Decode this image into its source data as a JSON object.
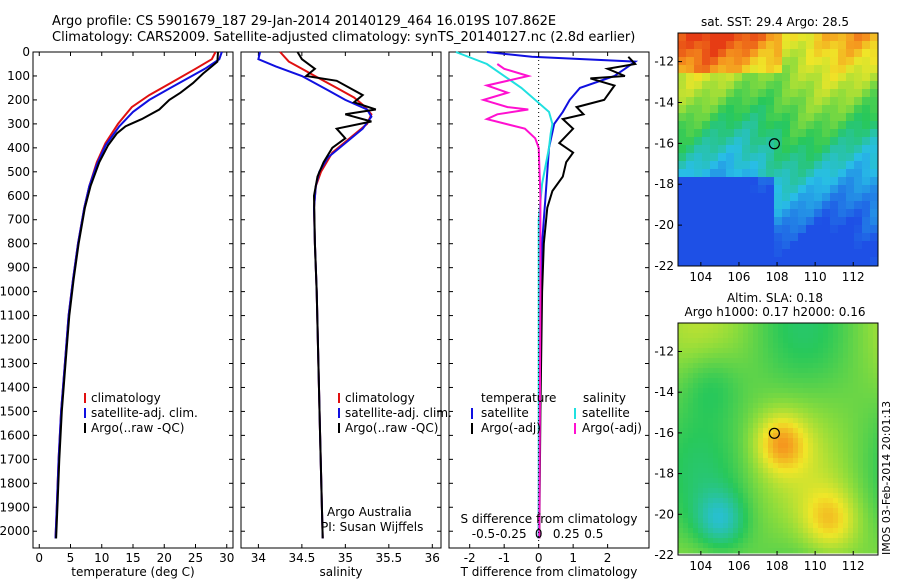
{
  "header": {
    "line1": "Argo profile: CS 5901679_187 29-Jan-2014 20140129_464 16.019S 107.862E",
    "line2": "Climatology: CARS2009. Satellite-adjusted climatology: synTS_20140127.nc (2.8d earlier)"
  },
  "stamp": "IMOS 03-Feb-2014 20:01:13",
  "colors": {
    "climatology": "#e01010",
    "satellite": "#1010e0",
    "argo": "#000000",
    "sal_sat": "#20e0e0",
    "sal_argo": "#ff10d0"
  },
  "chart_data": [
    {
      "type": "line",
      "id": "temperature",
      "xlabel": "temperature (deg C)",
      "ylabel": "",
      "xlim": [
        -1,
        31
      ],
      "ylim": [
        2070,
        0
      ],
      "xticks": [
        0,
        5,
        10,
        15,
        20,
        25,
        30
      ],
      "yticks": [
        0,
        100,
        200,
        300,
        400,
        500,
        600,
        700,
        800,
        900,
        1000,
        1100,
        1200,
        1300,
        1400,
        1500,
        1600,
        1700,
        1800,
        1900,
        2000
      ],
      "legend": [
        "climatology",
        "satellite-adj. clim.",
        "Argo(..raw -QC)"
      ],
      "series": [
        {
          "name": "climatology",
          "color": "#e01010",
          "points": [
            [
              28.2,
              0
            ],
            [
              27.6,
              30
            ],
            [
              25,
              70
            ],
            [
              21,
              130
            ],
            [
              17.6,
              180
            ],
            [
              14.8,
              230
            ],
            [
              12.6,
              300
            ],
            [
              10.6,
              380
            ],
            [
              9.2,
              460
            ],
            [
              8,
              560
            ],
            [
              7.2,
              650
            ],
            [
              6.2,
              800
            ],
            [
              5.4,
              950
            ],
            [
              4.7,
              1100
            ],
            [
              4.1,
              1300
            ],
            [
              3.5,
              1500
            ],
            [
              3.1,
              1700
            ],
            [
              2.8,
              1900
            ],
            [
              2.6,
              2030
            ]
          ]
        },
        {
          "name": "satellite-adj. clim.",
          "color": "#1010e0",
          "points": [
            [
              29.2,
              0
            ],
            [
              28.8,
              30
            ],
            [
              26.5,
              70
            ],
            [
              21,
              150
            ],
            [
              17.6,
              200
            ],
            [
              15,
              250
            ],
            [
              12.8,
              310
            ],
            [
              10.6,
              390
            ],
            [
              9.2,
              470
            ],
            [
              8,
              560
            ],
            [
              7.2,
              650
            ],
            [
              6.2,
              800
            ],
            [
              5.4,
              950
            ],
            [
              4.7,
              1100
            ],
            [
              4.1,
              1300
            ],
            [
              3.5,
              1500
            ],
            [
              3.1,
              1700
            ],
            [
              2.8,
              1900
            ],
            [
              2.6,
              2030
            ]
          ]
        },
        {
          "name": "Argo(..raw -QC)",
          "color": "#000000",
          "points": [
            [
              28.6,
              0
            ],
            [
              28.5,
              40
            ],
            [
              27.6,
              60
            ],
            [
              26.2,
              90
            ],
            [
              24.6,
              130
            ],
            [
              22.6,
              170
            ],
            [
              20.8,
              200
            ],
            [
              19.2,
              240
            ],
            [
              16.4,
              280
            ],
            [
              13.8,
              310
            ],
            [
              12.4,
              340
            ],
            [
              11,
              390
            ],
            [
              9.6,
              460
            ],
            [
              8.2,
              560
            ],
            [
              7.3,
              650
            ],
            [
              6.3,
              800
            ],
            [
              5.5,
              950
            ],
            [
              4.8,
              1100
            ],
            [
              4.2,
              1300
            ],
            [
              3.6,
              1500
            ],
            [
              3.2,
              1700
            ],
            [
              2.9,
              1900
            ],
            [
              2.7,
              2030
            ]
          ]
        }
      ]
    },
    {
      "type": "line",
      "id": "salinity",
      "xlabel": "salinity",
      "xlim": [
        33.8,
        36.1
      ],
      "ylim": [
        2070,
        0
      ],
      "xticks": [
        34,
        34.5,
        35,
        35.5,
        36
      ],
      "legend": [
        "climatology",
        "satellite-adj. clim.",
        "Argo(..raw -QC)"
      ],
      "annotation": [
        "Argo Australia",
        "PI: Susan Wijffels"
      ],
      "series": [
        {
          "name": "climatology",
          "color": "#e01010",
          "points": [
            [
              34.25,
              0
            ],
            [
              34.35,
              40
            ],
            [
              34.5,
              70
            ],
            [
              34.65,
              100
            ],
            [
              34.9,
              150
            ],
            [
              35.1,
              190
            ],
            [
              35.2,
              220
            ],
            [
              35.3,
              260
            ],
            [
              35.25,
              300
            ],
            [
              35.05,
              360
            ],
            [
              34.85,
              420
            ],
            [
              34.72,
              500
            ],
            [
              34.66,
              560
            ],
            [
              34.64,
              650
            ],
            [
              34.65,
              800
            ],
            [
              34.67,
              1000
            ],
            [
              34.69,
              1300
            ],
            [
              34.71,
              1600
            ],
            [
              34.73,
              1900
            ],
            [
              34.74,
              2030
            ]
          ]
        },
        {
          "name": "satellite-adj. clim.",
          "color": "#1010e0",
          "points": [
            [
              34.02,
              0
            ],
            [
              34.0,
              30
            ],
            [
              34.2,
              60
            ],
            [
              34.5,
              100
            ],
            [
              34.8,
              160
            ],
            [
              35.0,
              200
            ],
            [
              35.25,
              240
            ],
            [
              35.3,
              270
            ],
            [
              35.2,
              320
            ],
            [
              35.0,
              380
            ],
            [
              34.8,
              440
            ],
            [
              34.7,
              500
            ],
            [
              34.66,
              560
            ],
            [
              34.64,
              650
            ],
            [
              34.65,
              800
            ],
            [
              34.67,
              1000
            ],
            [
              34.69,
              1300
            ],
            [
              34.71,
              1600
            ],
            [
              34.73,
              1900
            ],
            [
              34.74,
              2030
            ]
          ]
        },
        {
          "name": "Argo(..raw -QC)",
          "color": "#000000",
          "points": [
            [
              34.45,
              0
            ],
            [
              34.5,
              30
            ],
            [
              34.65,
              70
            ],
            [
              34.55,
              100
            ],
            [
              34.9,
              120
            ],
            [
              35.2,
              180
            ],
            [
              35.1,
              210
            ],
            [
              35.35,
              240
            ],
            [
              35.0,
              260
            ],
            [
              35.3,
              290
            ],
            [
              34.9,
              320
            ],
            [
              35.0,
              360
            ],
            [
              34.85,
              400
            ],
            [
              34.75,
              460
            ],
            [
              34.68,
              520
            ],
            [
              34.64,
              600
            ],
            [
              34.65,
              800
            ],
            [
              34.67,
              1000
            ],
            [
              34.69,
              1300
            ],
            [
              34.71,
              1600
            ],
            [
              34.73,
              1900
            ],
            [
              34.74,
              2030
            ]
          ]
        }
      ]
    },
    {
      "type": "line",
      "id": "difference",
      "xlabel": "T difference from climatology",
      "x2label": "S difference from climatology",
      "xlim": [
        -2.6,
        3.2
      ],
      "ylim": [
        2070,
        0
      ],
      "xticks": [
        -2,
        -1,
        0,
        1,
        2
      ],
      "x2ticks": [
        "-0.5",
        "-0.25",
        "0",
        "0.25",
        "0.5"
      ],
      "legend": {
        "temperature_head": "temperature",
        "salinity_head": "salinity",
        "t_sat": "satellite",
        "t_argo": "Argo(-adj)",
        "s_sat": "satellite",
        "s_argo": "Argo(-adj)"
      },
      "series": [
        {
          "name": "temperature satellite",
          "color": "#1010e0",
          "points": [
            [
              -1.5,
              0
            ],
            [
              -0.2,
              20
            ],
            [
              2.8,
              40
            ],
            [
              2.5,
              70
            ],
            [
              2.2,
              100
            ],
            [
              1.2,
              150
            ],
            [
              0.9,
              200
            ],
            [
              0.7,
              250
            ],
            [
              0.45,
              300
            ],
            [
              0.3,
              400
            ],
            [
              0.25,
              500
            ],
            [
              0.2,
              600
            ],
            [
              0.15,
              700
            ],
            [
              0.1,
              800
            ],
            [
              0.05,
              1000
            ],
            [
              0.02,
              1500
            ],
            [
              0,
              2030
            ]
          ]
        },
        {
          "name": "temperature Argo(-adj)",
          "color": "#000000",
          "points": [
            [
              2.6,
              20
            ],
            [
              2.8,
              50
            ],
            [
              2.0,
              70
            ],
            [
              2.5,
              100
            ],
            [
              1.5,
              110
            ],
            [
              2.2,
              140
            ],
            [
              1.9,
              200
            ],
            [
              1.1,
              230
            ],
            [
              1.3,
              260
            ],
            [
              0.7,
              280
            ],
            [
              1.0,
              320
            ],
            [
              0.6,
              380
            ],
            [
              1.0,
              420
            ],
            [
              0.8,
              460
            ],
            [
              0.7,
              520
            ],
            [
              0.4,
              580
            ],
            [
              0.25,
              650
            ],
            [
              0.15,
              800
            ],
            [
              0.1,
              1000
            ],
            [
              0.05,
              1500
            ],
            [
              0.02,
              2030
            ]
          ]
        },
        {
          "name": "salinity satellite",
          "color": "#20e0e0",
          "points": [
            [
              -2.4,
              0
            ],
            [
              -1.5,
              50
            ],
            [
              -0.5,
              150
            ],
            [
              0.3,
              250
            ],
            [
              0.4,
              300
            ],
            [
              0.35,
              340
            ],
            [
              0.3,
              400
            ],
            [
              0.1,
              550
            ],
            [
              0.0,
              700
            ],
            [
              0.0,
              1000
            ],
            [
              0.0,
              2030
            ]
          ]
        },
        {
          "name": "salinity Argo(-adj)",
          "color": "#ff10d0",
          "points": [
            [
              -1.2,
              50
            ],
            [
              -1.0,
              70
            ],
            [
              -0.3,
              100
            ],
            [
              -1.5,
              140
            ],
            [
              -0.9,
              170
            ],
            [
              -1.6,
              200
            ],
            [
              -0.9,
              230
            ],
            [
              -0.3,
              240
            ],
            [
              -1.2,
              260
            ],
            [
              -1.5,
              280
            ],
            [
              -0.4,
              320
            ],
            [
              -0.1,
              360
            ],
            [
              0.0,
              400
            ],
            [
              0.05,
              600
            ],
            [
              0.05,
              1000
            ],
            [
              0.02,
              2030
            ]
          ]
        }
      ]
    },
    {
      "type": "heatmap",
      "id": "sst_map",
      "title": "sat. SST: 29.4  Argo: 28.5",
      "xticks": [
        104,
        106,
        108,
        110,
        112
      ],
      "yticks": [
        -12,
        -14,
        -16,
        -18,
        -20,
        -22
      ],
      "xlim": [
        102.8,
        113.3
      ],
      "ylim": [
        -22,
        -10.6
      ],
      "marker": [
        107.86,
        -16.02
      ]
    },
    {
      "type": "heatmap",
      "id": "sla_map",
      "title": "Altim. SLA: 0.18",
      "subtitle": "Argo h1000: 0.17 h2000: 0.16",
      "xticks": [
        104,
        106,
        108,
        110,
        112
      ],
      "yticks": [
        -12,
        -14,
        -16,
        -18,
        -20,
        -22
      ],
      "xlim": [
        102.8,
        113.3
      ],
      "ylim": [
        -22,
        -10.6
      ],
      "marker": [
        107.86,
        -16.02
      ]
    }
  ]
}
